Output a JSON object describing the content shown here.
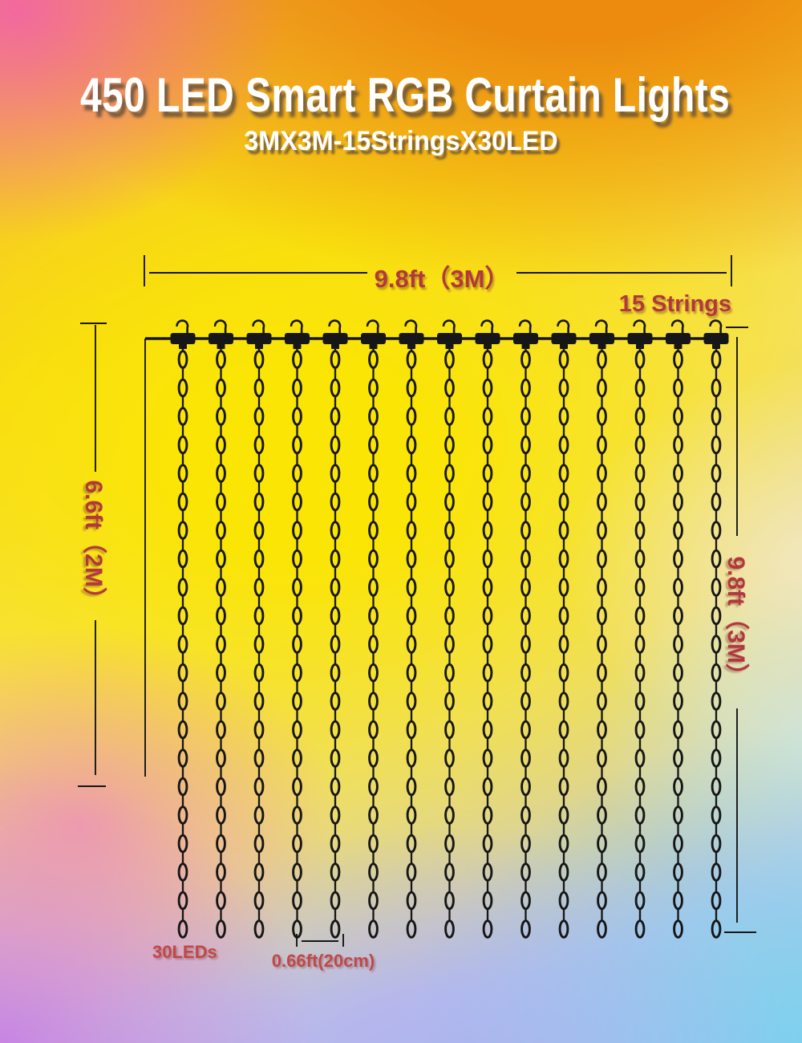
{
  "header": {
    "title": "450 LED Smart RGB Curtain Lights",
    "subtitle": "3MX3M-15StringsX30LED"
  },
  "labels": {
    "width_top": "9.8ft（3M）",
    "strings_count": "15 Strings",
    "height_left": "6.6ft（2M）",
    "height_right": "9.8ft（3M）",
    "leds_per_string": "30LEDs",
    "string_gap": "0.66ft(20cm)"
  },
  "diagram": {
    "strings_count": 15,
    "beads_per_string_visual": 21,
    "line_color": "#161616"
  },
  "colors": {
    "label_red": "#b2383e",
    "title_white": "#ffffff",
    "bg_top_left_pink": "#f266a4",
    "bg_top_right_orange": "#ec8b0e",
    "bg_center_yellow": "#fae505",
    "bg_bottom_left_purple": "#c67ae6",
    "bg_bottom_center_lavender": "#acacf0",
    "bg_bottom_right_cyan": "#76d0ee",
    "bg_right_cream": "#f2e8c8"
  }
}
